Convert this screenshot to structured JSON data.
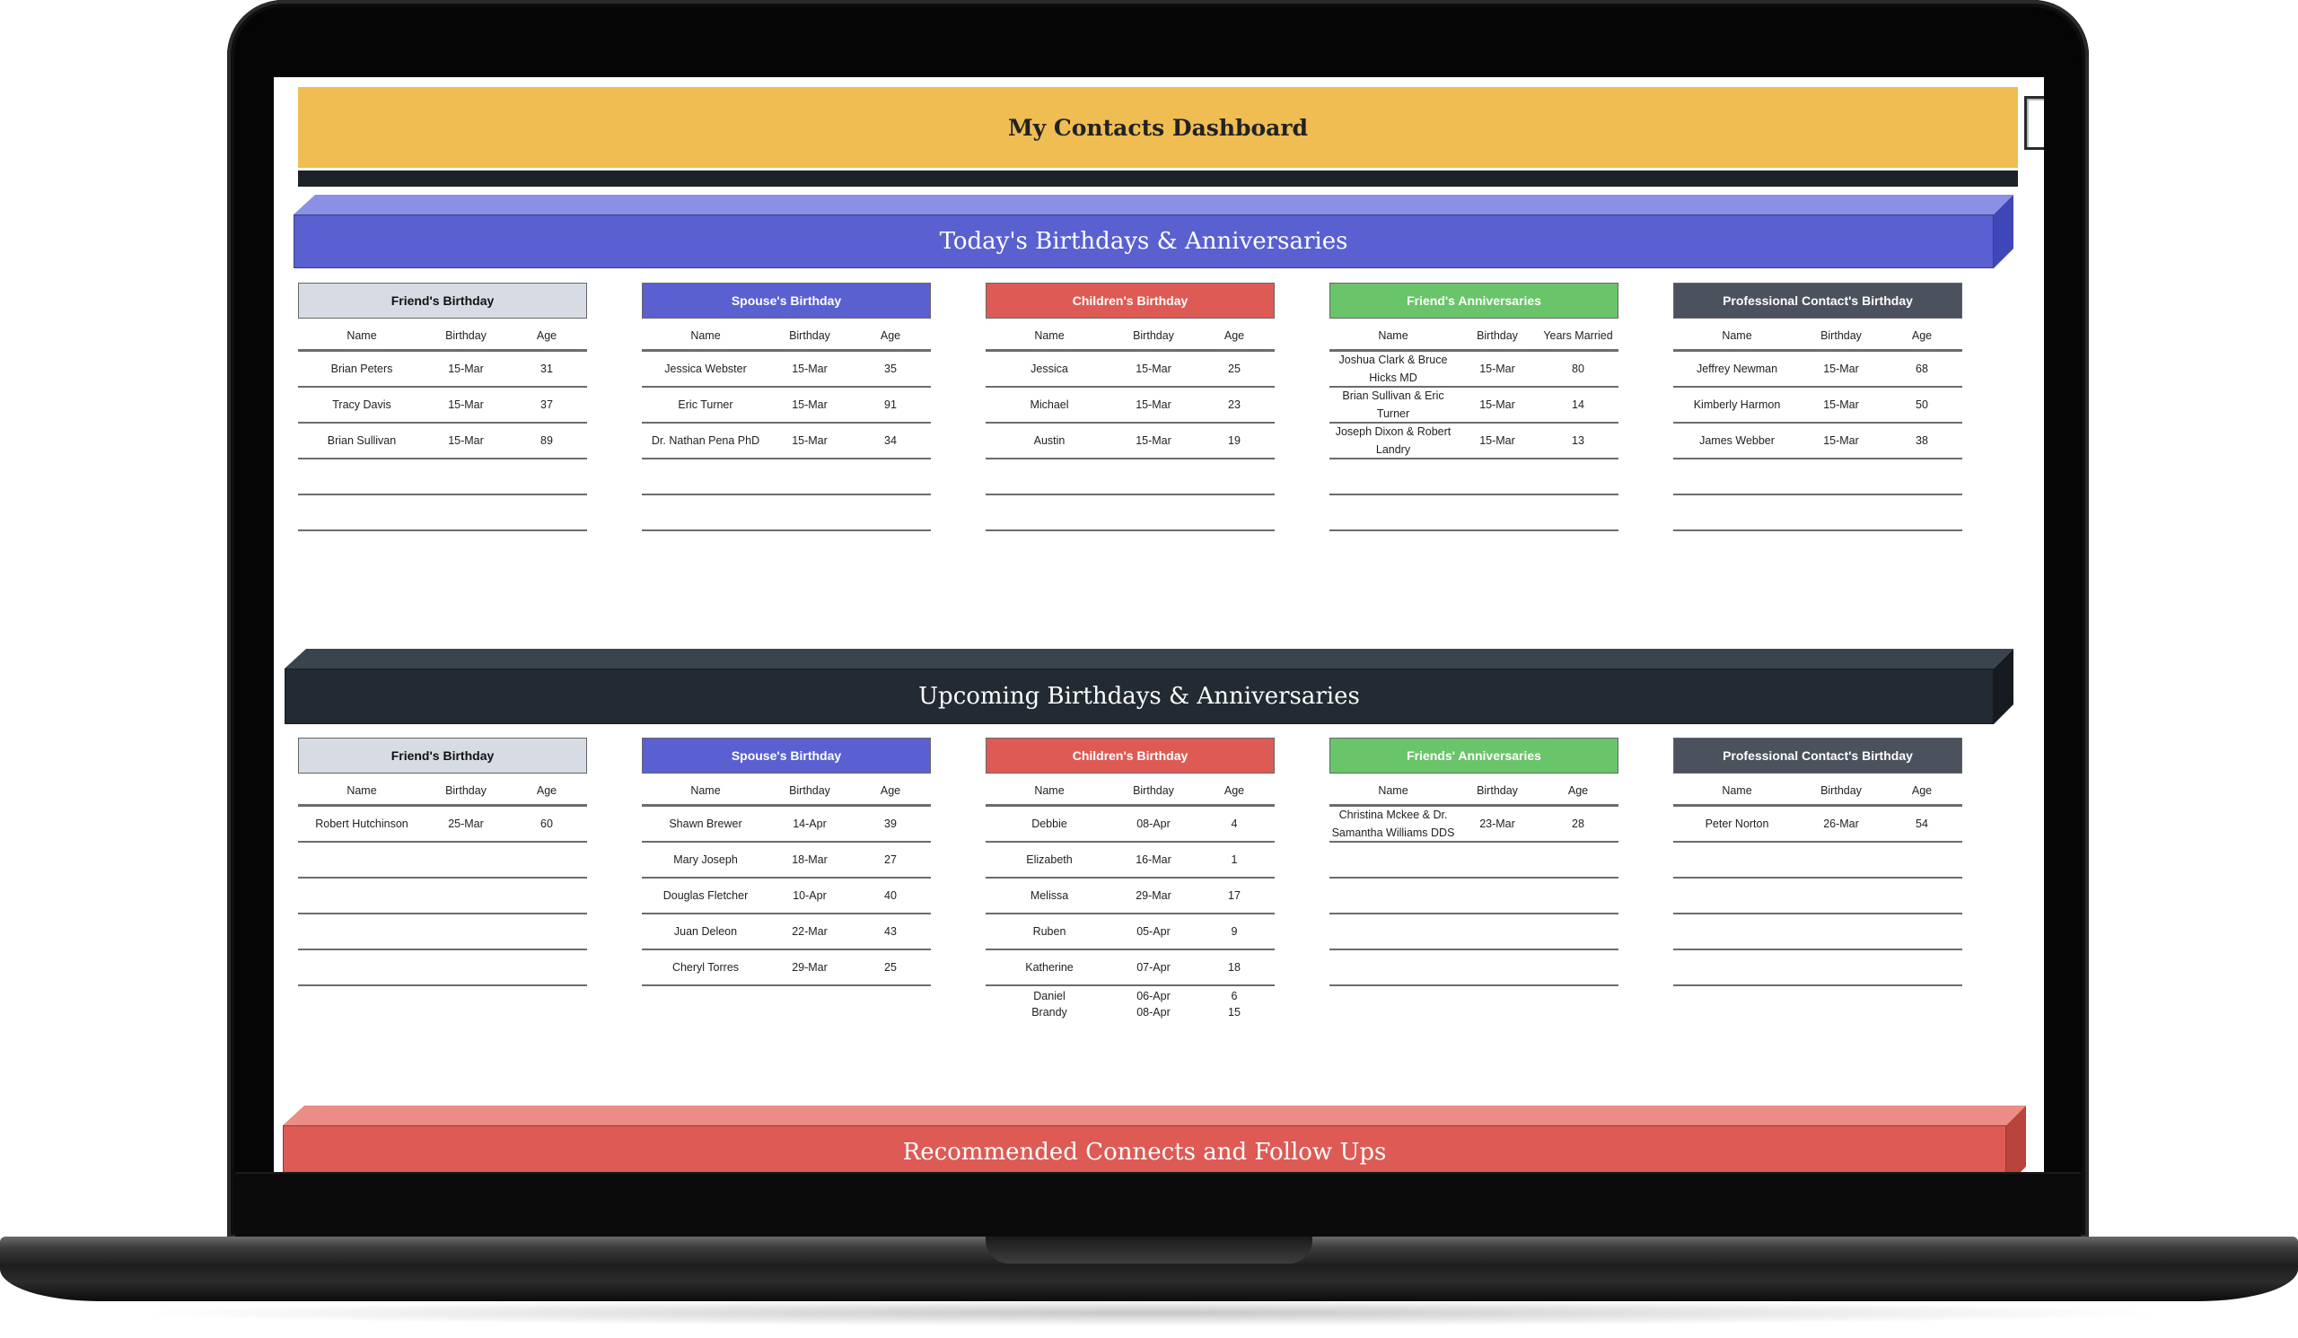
{
  "dashboard": {
    "title": "My Contacts Dashboard"
  },
  "sections": {
    "today": "Today's Birthdays & Anniversaries",
    "upcoming": "Upcoming Birthdays & Anniversaries",
    "recommended": "Recommended Connects and Follow Ups"
  },
  "today": {
    "friends": {
      "title": "Friend's Birthday",
      "headers": [
        "Name",
        "Birthday",
        "Age"
      ],
      "rows": [
        [
          "Brian Peters",
          "15-Mar",
          "31"
        ],
        [
          "Tracy Davis",
          "15-Mar",
          "37"
        ],
        [
          "Brian Sullivan",
          "15-Mar",
          "89"
        ],
        [
          "",
          "",
          ""
        ],
        [
          "",
          "",
          ""
        ]
      ]
    },
    "spouse": {
      "title": "Spouse's Birthday",
      "headers": [
        "Name",
        "Birthday",
        "Age"
      ],
      "rows": [
        [
          "Jessica Webster",
          "15-Mar",
          "35"
        ],
        [
          "Eric Turner",
          "15-Mar",
          "91"
        ],
        [
          "Dr. Nathan Pena PhD",
          "15-Mar",
          "34"
        ],
        [
          "",
          "",
          ""
        ],
        [
          "",
          "",
          ""
        ]
      ]
    },
    "children": {
      "title": "Children's Birthday",
      "headers": [
        "Name",
        "Birthday",
        "Age"
      ],
      "rows": [
        [
          "Jessica",
          "15-Mar",
          "25"
        ],
        [
          "Michael",
          "15-Mar",
          "23"
        ],
        [
          "Austin",
          "15-Mar",
          "19"
        ],
        [
          "",
          "",
          ""
        ],
        [
          "",
          "",
          ""
        ]
      ]
    },
    "anniversaries": {
      "title": "Friend's Anniversaries",
      "headers": [
        "Name",
        "Birthday",
        "Years Married"
      ],
      "rows": [
        [
          "Joshua Clark & Bruce Hicks MD",
          "15-Mar",
          "80"
        ],
        [
          "Brian Sullivan & Eric Turner",
          "15-Mar",
          "14"
        ],
        [
          "Joseph Dixon & Robert Landry",
          "15-Mar",
          "13"
        ],
        [
          "",
          "",
          ""
        ],
        [
          "",
          "",
          ""
        ]
      ]
    },
    "professional": {
      "title": "Professional Contact's Birthday",
      "headers": [
        "Name",
        "Birthday",
        "Age"
      ],
      "rows": [
        [
          "Jeffrey Newman",
          "15-Mar",
          "68"
        ],
        [
          "Kimberly Harmon",
          "15-Mar",
          "50"
        ],
        [
          "James Webber",
          "15-Mar",
          "38"
        ],
        [
          "",
          "",
          ""
        ],
        [
          "",
          "",
          ""
        ]
      ]
    }
  },
  "upcoming": {
    "friends": {
      "title": "Friend's Birthday",
      "headers": [
        "Name",
        "Birthday",
        "Age"
      ],
      "rows": [
        [
          "Robert Hutchinson",
          "25-Mar",
          "60"
        ],
        [
          "",
          "",
          ""
        ],
        [
          "",
          "",
          ""
        ],
        [
          "",
          "",
          ""
        ],
        [
          "",
          "",
          ""
        ]
      ]
    },
    "spouse": {
      "title": "Spouse's Birthday",
      "headers": [
        "Name",
        "Birthday",
        "Age"
      ],
      "rows": [
        [
          "Shawn Brewer",
          "14-Apr",
          "39"
        ],
        [
          "Mary Joseph",
          "18-Mar",
          "27"
        ],
        [
          "Douglas Fletcher",
          "10-Apr",
          "40"
        ],
        [
          "Juan Deleon",
          "22-Mar",
          "43"
        ],
        [
          "Cheryl Torres",
          "29-Mar",
          "25"
        ]
      ]
    },
    "children": {
      "title": "Children's Birthday",
      "headers": [
        "Name",
        "Birthday",
        "Age"
      ],
      "rows": [
        [
          "Debbie",
          "08-Apr",
          "4"
        ],
        [
          "Elizabeth",
          "16-Mar",
          "1"
        ],
        [
          "Melissa",
          "29-Mar",
          "17"
        ],
        [
          "Ruben",
          "05-Apr",
          "9"
        ],
        [
          "Katherine",
          "07-Apr",
          "18"
        ]
      ],
      "extra": [
        [
          "Daniel",
          "06-Apr",
          "6"
        ],
        [
          "Brandy",
          "08-Apr",
          "15"
        ]
      ]
    },
    "anniversaries": {
      "title": "Friends' Anniversaries",
      "headers": [
        "Name",
        "Birthday",
        "Age"
      ],
      "rows": [
        [
          "Christina Mckee & Dr. Samantha Williams DDS",
          "23-Mar",
          "28"
        ],
        [
          "",
          "",
          ""
        ],
        [
          "",
          "",
          ""
        ],
        [
          "",
          "",
          ""
        ],
        [
          "",
          "",
          ""
        ]
      ]
    },
    "professional": {
      "title": "Professional Contact's Birthday",
      "headers": [
        "Name",
        "Birthday",
        "Age"
      ],
      "rows": [
        [
          "Peter Norton",
          "26-Mar",
          "54"
        ],
        [
          "",
          "",
          ""
        ],
        [
          "",
          "",
          ""
        ],
        [
          "",
          "",
          ""
        ],
        [
          "",
          "",
          ""
        ]
      ]
    }
  },
  "colors": {
    "title_bar": "#efbd52",
    "blue": "#5a60d0",
    "dark": "#222a33",
    "red": "#de5b55",
    "green": "#6ac46a",
    "slate": "#4b525d",
    "gray": "#d6dbe4"
  }
}
